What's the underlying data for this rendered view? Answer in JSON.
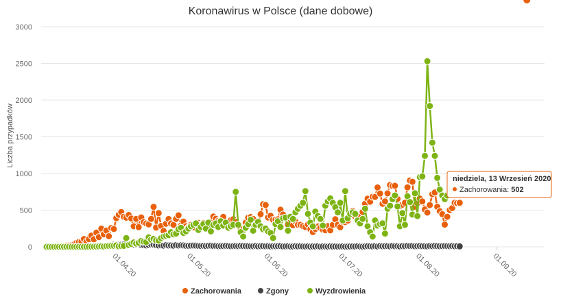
{
  "chart_data": {
    "type": "line",
    "title": "Koronawirus w Polsce (dane dobowe)",
    "ylabel": "Liczba przypadków",
    "ylim": [
      0,
      3000
    ],
    "yticks": [
      0,
      500,
      1000,
      1500,
      2000,
      2500,
      3000
    ],
    "x_start": "2020-03-04",
    "x_ticks": [
      "01.04.20",
      "01.05.20",
      "01.06.20",
      "01.07.20",
      "01.08.20",
      "01.09.20"
    ],
    "legend_position": "bottom",
    "grid": true,
    "series": [
      {
        "name": "Zachorowania",
        "color": "#e8600c",
        "values": [
          1,
          0,
          0,
          1,
          5,
          6,
          5,
          5,
          17,
          19,
          22,
          32,
          54,
          66,
          70,
          107,
          71,
          105,
          153,
          104,
          193,
          133,
          249,
          170,
          222,
          145,
          256,
          243,
          392,
          437,
          475,
          408,
          397,
          435,
          387,
          280,
          380,
          268,
          401,
          336,
          318,
          306,
          380,
          545,
          263,
          460,
          285,
          216,
          315,
          379,
          319,
          299,
          380,
          430,
          290,
          344,
          281,
          264,
          302,
          265,
          313,
          326,
          306,
          325,
          297,
          332,
          344,
          413,
          383,
          353,
          359,
          408,
          305,
          279,
          364,
          376,
          339,
          301,
          245,
          247,
          330,
          397,
          407,
          380,
          306,
          324,
          445,
          580,
          570,
          400,
          423,
          368,
          371,
          377,
          506,
          440,
          394,
          303,
          375,
          293,
          346,
          299,
          300,
          283,
          270,
          305,
          240,
          202,
          244,
          278,
          260,
          234,
          227,
          282,
          225,
          299,
          376,
          300,
          267,
          342,
          337,
          357,
          436,
          490,
          415,
          384,
          412,
          476,
          588,
          657,
          615,
          682,
          680,
          809,
          726,
          587,
          619,
          729,
          843,
          830,
          832,
          653,
          554,
          575,
          601,
          811,
          903,
          887,
          548,
          597,
          658,
          619,
          510,
          467,
          569,
          718,
          740,
          546,
          486,
          445,
          303,
          410,
          502,
          528,
          601,
          595,
          600
        ],
        "point_radius": 5
      },
      {
        "name": "Zgony",
        "color": "#444444",
        "values": [
          0,
          0,
          0,
          0,
          0,
          0,
          0,
          0,
          1,
          1,
          1,
          2,
          2,
          3,
          3,
          4,
          5,
          5,
          8,
          6,
          8,
          9,
          12,
          14,
          18,
          21,
          25,
          29,
          30,
          28,
          31,
          33,
          35,
          28,
          30,
          27,
          32,
          40,
          26,
          22,
          20,
          25,
          34,
          30,
          24,
          18,
          21,
          17,
          23,
          19,
          20,
          16,
          22,
          18,
          21,
          19,
          15,
          14,
          17,
          18,
          16,
          13,
          12,
          14,
          11,
          15,
          17,
          12,
          13,
          9,
          10,
          11,
          14,
          12,
          8,
          10,
          11,
          9,
          14,
          12,
          11,
          10,
          8,
          9,
          12,
          7,
          9,
          11,
          8,
          10,
          7,
          8,
          9,
          10,
          11,
          6,
          7,
          8,
          5,
          6,
          9,
          7,
          8,
          6,
          5,
          7,
          4,
          6,
          5,
          8,
          3,
          6,
          5,
          4,
          7,
          5,
          6,
          4,
          5,
          6,
          3,
          4,
          5,
          7,
          6,
          8,
          5,
          4,
          6,
          9,
          8,
          7,
          10,
          6,
          11,
          8,
          9,
          10,
          7,
          12,
          8,
          9,
          6,
          10,
          9,
          14,
          11,
          12,
          8,
          10,
          12,
          9,
          8,
          7,
          11,
          9,
          13,
          10,
          8,
          9,
          12,
          10,
          9,
          11,
          8,
          10,
          7
        ],
        "point_radius": 5
      },
      {
        "name": "Wyzdrowienia",
        "color": "#7db414",
        "values": [
          0,
          0,
          0,
          0,
          0,
          0,
          0,
          0,
          0,
          0,
          0,
          0,
          0,
          0,
          0,
          0,
          0,
          1,
          2,
          3,
          4,
          6,
          8,
          5,
          10,
          12,
          15,
          14,
          20,
          7,
          11,
          13,
          120,
          25,
          40,
          60,
          45,
          55,
          80,
          70,
          65,
          130,
          100,
          110,
          90,
          85,
          120,
          140,
          150,
          160,
          200,
          170,
          180,
          240,
          260,
          190,
          210,
          250,
          280,
          300,
          320,
          230,
          270,
          310,
          250,
          330,
          210,
          300,
          320,
          270,
          350,
          290,
          330,
          260,
          280,
          300,
          750,
          300,
          200,
          140,
          260,
          310,
          370,
          220,
          300,
          340,
          280,
          240,
          250,
          210,
          190,
          120,
          310,
          350,
          270,
          390,
          400,
          220,
          410,
          380,
          470,
          520,
          560,
          600,
          760,
          450,
          330,
          280,
          480,
          420,
          380,
          290,
          560,
          620,
          660,
          600,
          540,
          470,
          600,
          360,
          760,
          390,
          450,
          470,
          450,
          360,
          320,
          380,
          520,
          280,
          200,
          140,
          360,
          290,
          310,
          320,
          180,
          520,
          560,
          650,
          700,
          550,
          280,
          460,
          300,
          690,
          610,
          440,
          730,
          420,
          950,
          960,
          1240,
          2530,
          1920,
          1420,
          1240,
          940,
          780,
          700,
          650,
          700,
          750,
          800,
          850,
          820,
          790
        ],
        "point_radius": 5
      }
    ],
    "tooltip": {
      "date_label": "niedziela, 13 Wrzesień 2020",
      "series_name": "Zachorowania",
      "value": "502",
      "day_index": 193
    }
  }
}
